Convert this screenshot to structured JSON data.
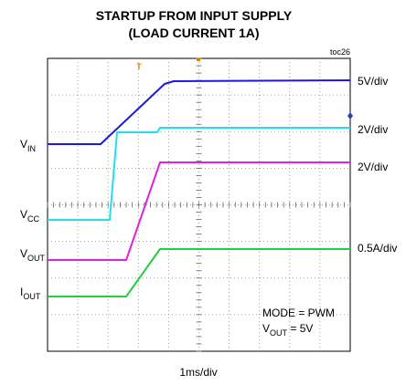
{
  "title": {
    "line1": "STARTUP FROM INPUT SUPPLY",
    "line2": "(LOAD CURRENT 1A)"
  },
  "figure_id": "toc26",
  "trace_labels": [
    {
      "main": "V",
      "sub": "IN"
    },
    {
      "main": "V",
      "sub": "CC"
    },
    {
      "main": "V",
      "sub": "OUT"
    },
    {
      "main": "I",
      "sub": "OUT"
    }
  ],
  "scale_labels": [
    "5V/div",
    "2V/div",
    "2V/div",
    "0.5A/div"
  ],
  "time_scale": "1ms/div",
  "trigger_marker": "T",
  "notes": {
    "mode": "MODE = PWM",
    "vout_main": "V",
    "vout_sub": "OUT",
    "vout_rest": " = 5V"
  }
}
